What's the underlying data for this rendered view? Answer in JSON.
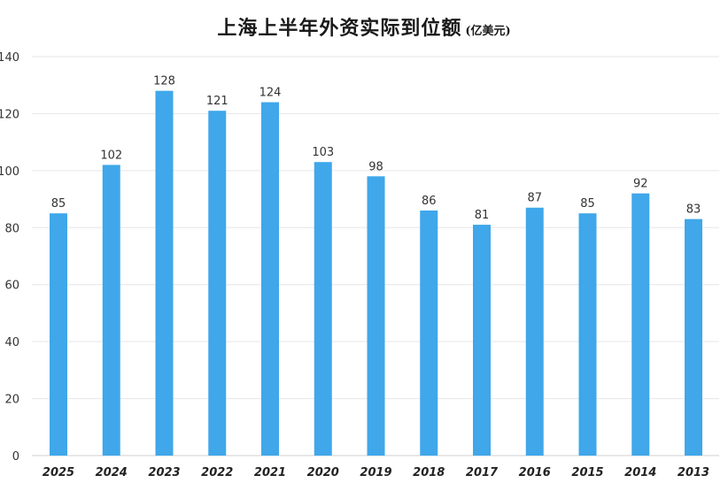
{
  "chart_data": {
    "type": "bar",
    "title": "上海上半年外资实际到位额",
    "unit": "(亿美元)",
    "categories": [
      "2025",
      "2024",
      "2023",
      "2022",
      "2021",
      "2020",
      "2019",
      "2018",
      "2017",
      "2016",
      "2015",
      "2014",
      "2013"
    ],
    "values": [
      85,
      102,
      128,
      121,
      124,
      103,
      98,
      86,
      81,
      87,
      85,
      92,
      83
    ],
    "ylim": [
      0,
      140
    ],
    "yticks": [
      0,
      20,
      40,
      60,
      80,
      100,
      120,
      140
    ],
    "grid": true,
    "bar_color": "#3fa7ea",
    "grid_color": "#e6e6e6",
    "legend": "none"
  }
}
